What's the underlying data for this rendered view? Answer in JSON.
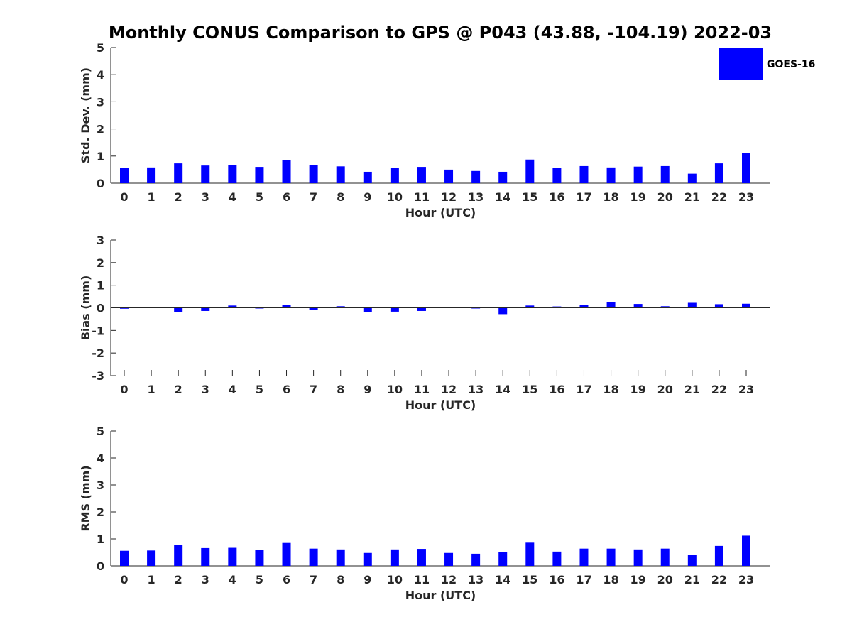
{
  "title": "Monthly CONUS Comparison to GPS @ P043 (43.88, -104.19) 2022-03",
  "legend": {
    "label": "GOES-16",
    "color": "#0000ff",
    "placement": "top-right"
  },
  "chart_data": [
    {
      "type": "bar",
      "xlabel": "Hour (UTC)",
      "ylabel": "Std. Dev. (mm)",
      "ylim": [
        0,
        5
      ],
      "yticks": [
        "0",
        "1",
        "2",
        "3",
        "4",
        "5"
      ],
      "categories": [
        "0",
        "1",
        "2",
        "3",
        "4",
        "5",
        "6",
        "7",
        "8",
        "9",
        "10",
        "11",
        "12",
        "13",
        "14",
        "15",
        "16",
        "17",
        "18",
        "19",
        "20",
        "21",
        "22",
        "23"
      ],
      "series": [
        {
          "name": "GOES-16",
          "values": [
            0.55,
            0.58,
            0.73,
            0.65,
            0.66,
            0.6,
            0.85,
            0.66,
            0.62,
            0.42,
            0.57,
            0.6,
            0.5,
            0.45,
            0.42,
            0.87,
            0.55,
            0.63,
            0.58,
            0.61,
            0.63,
            0.35,
            0.73,
            1.1
          ]
        }
      ]
    },
    {
      "type": "bar",
      "xlabel": "Hour (UTC)",
      "ylabel": "Bias (mm)",
      "ylim": [
        -3,
        3
      ],
      "yticks": [
        "-3",
        "-2",
        "-1",
        "0",
        "1",
        "2",
        "3"
      ],
      "categories": [
        "0",
        "1",
        "2",
        "3",
        "4",
        "5",
        "6",
        "7",
        "8",
        "9",
        "10",
        "11",
        "12",
        "13",
        "14",
        "15",
        "16",
        "17",
        "18",
        "19",
        "20",
        "21",
        "22",
        "23"
      ],
      "series": [
        {
          "name": "GOES-16",
          "values": [
            -0.04,
            0.03,
            -0.18,
            -0.14,
            0.1,
            -0.01,
            0.13,
            -0.08,
            0.07,
            -0.2,
            -0.17,
            -0.14,
            0.04,
            -0.01,
            -0.28,
            0.1,
            0.06,
            0.14,
            0.26,
            0.17,
            0.07,
            0.22,
            0.16,
            0.18
          ]
        }
      ]
    },
    {
      "type": "bar",
      "xlabel": "Hour (UTC)",
      "ylabel": "RMS (mm)",
      "ylim": [
        0,
        5
      ],
      "yticks": [
        "0",
        "1",
        "2",
        "3",
        "4",
        "5"
      ],
      "categories": [
        "0",
        "1",
        "2",
        "3",
        "4",
        "5",
        "6",
        "7",
        "8",
        "9",
        "10",
        "11",
        "12",
        "13",
        "14",
        "15",
        "16",
        "17",
        "18",
        "19",
        "20",
        "21",
        "22",
        "23"
      ],
      "series": [
        {
          "name": "GOES-16",
          "values": [
            0.56,
            0.57,
            0.77,
            0.66,
            0.67,
            0.59,
            0.85,
            0.64,
            0.61,
            0.48,
            0.61,
            0.63,
            0.48,
            0.45,
            0.51,
            0.86,
            0.53,
            0.64,
            0.64,
            0.61,
            0.64,
            0.41,
            0.74,
            1.12
          ]
        }
      ]
    }
  ]
}
